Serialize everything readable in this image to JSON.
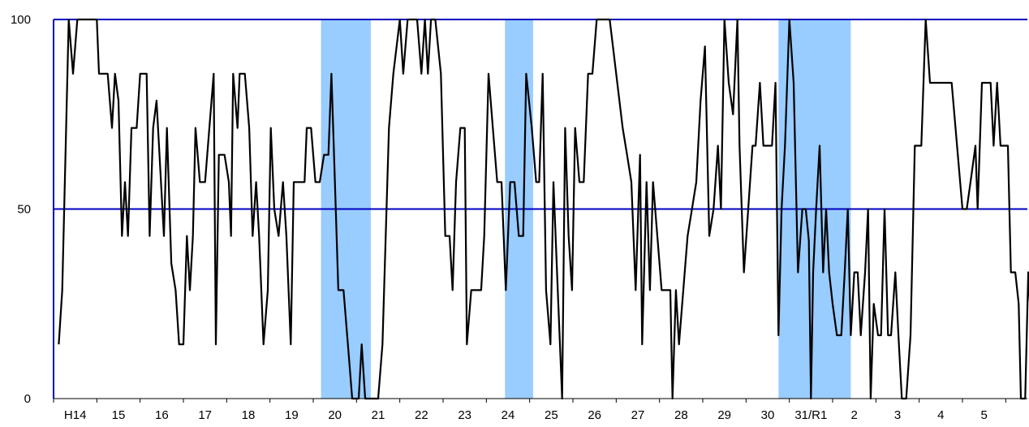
{
  "chart_data": {
    "type": "line",
    "title": "",
    "xlabel": "",
    "ylabel": "",
    "ylim": [
      0,
      100
    ],
    "y_ticks": [
      "0",
      "50",
      "100"
    ],
    "x_tick_labels": [
      "H14",
      "15",
      "16",
      "17",
      "18",
      "19",
      "20",
      "21",
      "22",
      "23",
      "24",
      "25",
      "26",
      "27",
      "28",
      "29",
      "30",
      "31/R1",
      "2",
      "3",
      "4",
      "5"
    ],
    "x_start": 2002.0,
    "x_end": 2024.5,
    "reference_lines": [
      50,
      100
    ],
    "shaded_periods": [
      [
        2008.18,
        2009.33
      ],
      [
        2012.43,
        2013.08
      ],
      [
        2018.75,
        2020.42
      ]
    ],
    "series": [
      {
        "name": "",
        "points": [
          [
            2002.12,
            14.3
          ],
          [
            2002.2,
            28.6
          ],
          [
            2002.35,
            100
          ],
          [
            2002.45,
            85.7
          ],
          [
            2002.55,
            100
          ],
          [
            2002.75,
            100
          ],
          [
            2003.0,
            100
          ],
          [
            2003.05,
            85.7
          ],
          [
            2003.25,
            85.7
          ],
          [
            2003.35,
            71.4
          ],
          [
            2003.42,
            85.7
          ],
          [
            2003.5,
            78.6
          ],
          [
            2003.58,
            42.9
          ],
          [
            2003.65,
            57.1
          ],
          [
            2003.72,
            42.9
          ],
          [
            2003.8,
            71.4
          ],
          [
            2003.92,
            71.4
          ],
          [
            2004.0,
            85.7
          ],
          [
            2004.15,
            85.7
          ],
          [
            2004.22,
            42.9
          ],
          [
            2004.3,
            71.4
          ],
          [
            2004.38,
            78.6
          ],
          [
            2004.55,
            42.9
          ],
          [
            2004.62,
            71.4
          ],
          [
            2004.72,
            35.7
          ],
          [
            2004.82,
            28.6
          ],
          [
            2004.9,
            14.3
          ],
          [
            2005.0,
            14.3
          ],
          [
            2005.08,
            42.9
          ],
          [
            2005.15,
            28.6
          ],
          [
            2005.22,
            42.9
          ],
          [
            2005.28,
            71.4
          ],
          [
            2005.38,
            57.1
          ],
          [
            2005.5,
            57.1
          ],
          [
            2005.6,
            71.4
          ],
          [
            2005.7,
            85.7
          ],
          [
            2005.75,
            14.3
          ],
          [
            2005.82,
            64.3
          ],
          [
            2005.95,
            64.3
          ],
          [
            2006.05,
            57.1
          ],
          [
            2006.1,
            42.9
          ],
          [
            2006.15,
            85.7
          ],
          [
            2006.25,
            71.4
          ],
          [
            2006.3,
            85.7
          ],
          [
            2006.42,
            85.7
          ],
          [
            2006.52,
            71.4
          ],
          [
            2006.6,
            42.9
          ],
          [
            2006.68,
            57.1
          ],
          [
            2006.75,
            42.9
          ],
          [
            2006.85,
            14.3
          ],
          [
            2006.95,
            28.6
          ],
          [
            2007.02,
            71.4
          ],
          [
            2007.1,
            50.0
          ],
          [
            2007.2,
            42.9
          ],
          [
            2007.3,
            57.1
          ],
          [
            2007.38,
            42.9
          ],
          [
            2007.48,
            14.3
          ],
          [
            2007.55,
            57.1
          ],
          [
            2007.7,
            57.1
          ],
          [
            2007.8,
            57.1
          ],
          [
            2007.85,
            71.4
          ],
          [
            2007.95,
            71.4
          ],
          [
            2008.05,
            57.1
          ],
          [
            2008.15,
            57.1
          ],
          [
            2008.25,
            64.3
          ],
          [
            2008.35,
            64.3
          ],
          [
            2008.42,
            85.7
          ],
          [
            2008.5,
            57.1
          ],
          [
            2008.58,
            28.6
          ],
          [
            2008.7,
            28.6
          ],
          [
            2008.8,
            14.3
          ],
          [
            2008.9,
            0
          ],
          [
            2009.05,
            0
          ],
          [
            2009.12,
            14.3
          ],
          [
            2009.2,
            0
          ],
          [
            2009.35,
            0
          ],
          [
            2009.5,
            0
          ],
          [
            2009.6,
            14.3
          ],
          [
            2009.75,
            71.4
          ],
          [
            2009.85,
            85.7
          ],
          [
            2010.0,
            100
          ],
          [
            2010.08,
            85.7
          ],
          [
            2010.18,
            100
          ],
          [
            2010.32,
            100
          ],
          [
            2010.4,
            100
          ],
          [
            2010.5,
            85.7
          ],
          [
            2010.58,
            100
          ],
          [
            2010.65,
            85.7
          ],
          [
            2010.72,
            100
          ],
          [
            2010.82,
            100
          ],
          [
            2010.95,
            85.7
          ],
          [
            2011.05,
            42.9
          ],
          [
            2011.15,
            42.9
          ],
          [
            2011.22,
            28.6
          ],
          [
            2011.3,
            57.1
          ],
          [
            2011.4,
            71.4
          ],
          [
            2011.5,
            71.4
          ],
          [
            2011.55,
            14.3
          ],
          [
            2011.65,
            28.6
          ],
          [
            2011.75,
            28.6
          ],
          [
            2011.88,
            28.6
          ],
          [
            2011.95,
            42.9
          ],
          [
            2012.05,
            85.7
          ],
          [
            2012.15,
            71.4
          ],
          [
            2012.25,
            57.1
          ],
          [
            2012.35,
            57.1
          ],
          [
            2012.45,
            28.6
          ],
          [
            2012.55,
            57.1
          ],
          [
            2012.65,
            57.1
          ],
          [
            2012.75,
            42.9
          ],
          [
            2012.85,
            42.9
          ],
          [
            2012.92,
            85.7
          ],
          [
            2013.05,
            71.4
          ],
          [
            2013.15,
            57.1
          ],
          [
            2013.22,
            57.1
          ],
          [
            2013.3,
            85.7
          ],
          [
            2013.38,
            28.6
          ],
          [
            2013.48,
            14.3
          ],
          [
            2013.55,
            57.1
          ],
          [
            2013.65,
            28.6
          ],
          [
            2013.75,
            0
          ],
          [
            2013.82,
            71.4
          ],
          [
            2013.9,
            42.9
          ],
          [
            2013.98,
            28.6
          ],
          [
            2014.05,
            71.4
          ],
          [
            2014.15,
            57.1
          ],
          [
            2014.25,
            57.1
          ],
          [
            2014.35,
            85.7
          ],
          [
            2014.45,
            85.7
          ],
          [
            2014.55,
            100
          ],
          [
            2014.75,
            100
          ],
          [
            2014.85,
            100
          ],
          [
            2015.0,
            85.7
          ],
          [
            2015.15,
            71.4
          ],
          [
            2015.25,
            64.3
          ],
          [
            2015.35,
            57.1
          ],
          [
            2015.45,
            28.6
          ],
          [
            2015.55,
            64.3
          ],
          [
            2015.6,
            14.3
          ],
          [
            2015.7,
            57.1
          ],
          [
            2015.78,
            28.6
          ],
          [
            2015.85,
            57.1
          ],
          [
            2015.95,
            42.9
          ],
          [
            2016.05,
            28.6
          ],
          [
            2016.15,
            28.6
          ],
          [
            2016.25,
            28.6
          ],
          [
            2016.3,
            0
          ],
          [
            2016.38,
            28.6
          ],
          [
            2016.45,
            14.3
          ],
          [
            2016.55,
            28.6
          ],
          [
            2016.65,
            42.9
          ],
          [
            2016.75,
            50.0
          ],
          [
            2016.85,
            57.1
          ],
          [
            2016.95,
            78.6
          ],
          [
            2017.05,
            92.9
          ],
          [
            2017.15,
            42.9
          ],
          [
            2017.25,
            50.0
          ],
          [
            2017.35,
            66.7
          ],
          [
            2017.42,
            50.0
          ],
          [
            2017.5,
            100
          ],
          [
            2017.6,
            83.3
          ],
          [
            2017.7,
            75.0
          ],
          [
            2017.8,
            100
          ],
          [
            2017.85,
            66.7
          ],
          [
            2017.95,
            33.3
          ],
          [
            2018.05,
            50.0
          ],
          [
            2018.15,
            66.7
          ],
          [
            2018.22,
            66.7
          ],
          [
            2018.32,
            83.3
          ],
          [
            2018.4,
            66.7
          ],
          [
            2018.5,
            66.7
          ],
          [
            2018.6,
            66.7
          ],
          [
            2018.68,
            83.3
          ],
          [
            2018.75,
            16.7
          ],
          [
            2018.82,
            50.0
          ],
          [
            2018.9,
            66.7
          ],
          [
            2019.0,
            100
          ],
          [
            2019.1,
            83.3
          ],
          [
            2019.2,
            33.3
          ],
          [
            2019.3,
            50.0
          ],
          [
            2019.38,
            50.0
          ],
          [
            2019.45,
            41.7
          ],
          [
            2019.5,
            0
          ],
          [
            2019.55,
            33.3
          ],
          [
            2019.62,
            50.0
          ],
          [
            2019.7,
            66.7
          ],
          [
            2019.78,
            33.3
          ],
          [
            2019.85,
            50.0
          ],
          [
            2019.92,
            33.3
          ],
          [
            2020.0,
            25.0
          ],
          [
            2020.1,
            16.7
          ],
          [
            2020.2,
            16.7
          ],
          [
            2020.28,
            33.3
          ],
          [
            2020.35,
            50.0
          ],
          [
            2020.42,
            16.7
          ],
          [
            2020.5,
            33.3
          ],
          [
            2020.58,
            33.3
          ],
          [
            2020.65,
            16.7
          ],
          [
            2020.75,
            33.3
          ],
          [
            2020.82,
            50.0
          ],
          [
            2020.88,
            0
          ],
          [
            2020.95,
            25.0
          ],
          [
            2021.05,
            16.7
          ],
          [
            2021.12,
            16.7
          ],
          [
            2021.2,
            50.0
          ],
          [
            2021.28,
            16.7
          ],
          [
            2021.35,
            16.7
          ],
          [
            2021.45,
            33.3
          ],
          [
            2021.52,
            16.7
          ],
          [
            2021.6,
            0
          ],
          [
            2021.7,
            0
          ],
          [
            2021.8,
            16.7
          ],
          [
            2021.9,
            66.7
          ],
          [
            2022.0,
            66.7
          ],
          [
            2022.05,
            66.7
          ],
          [
            2022.15,
            100
          ],
          [
            2022.25,
            83.3
          ],
          [
            2022.35,
            83.3
          ],
          [
            2022.55,
            83.3
          ],
          [
            2022.65,
            83.3
          ],
          [
            2022.75,
            83.3
          ],
          [
            2023.0,
            50.0
          ],
          [
            2023.1,
            50.0
          ],
          [
            2023.2,
            58.3
          ],
          [
            2023.3,
            66.7
          ],
          [
            2023.35,
            50.0
          ],
          [
            2023.45,
            83.3
          ],
          [
            2023.65,
            83.3
          ],
          [
            2023.72,
            66.7
          ],
          [
            2023.8,
            83.3
          ],
          [
            2023.88,
            66.7
          ],
          [
            2024.05,
            66.7
          ],
          [
            2024.12,
            33.3
          ],
          [
            2024.22,
            33.3
          ],
          [
            2024.3,
            25.0
          ],
          [
            2024.35,
            0
          ],
          [
            2024.45,
            0
          ],
          [
            2024.52,
            33.3
          ],
          [
            2024.6,
            16.7
          ],
          [
            2024.7,
            50.0
          ]
        ]
      }
    ]
  }
}
